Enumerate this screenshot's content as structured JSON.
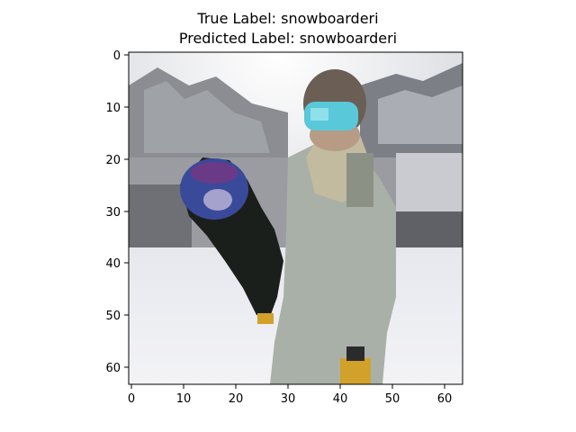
{
  "figure": {
    "title_line1": "True Label: snowboarderi",
    "title_line2": "Predicted Label: snowboarderi"
  },
  "axes": {
    "x_ticks": [
      "0",
      "10",
      "20",
      "30",
      "40",
      "50",
      "60"
    ],
    "y_ticks": [
      "0",
      "10",
      "20",
      "30",
      "40",
      "50",
      "60"
    ]
  },
  "image": {
    "description_icon": "snowboarder-photo",
    "colors": {
      "sky": "#e8e8ea",
      "snow": "#eef0f3",
      "mountain": "#8b8d92",
      "jacket": "#a9b0a8",
      "board_dark": "#1b1f1c",
      "board_top_purple": "#6b3a87",
      "board_blue": "#3a4a9a",
      "goggles": "#59c8d8",
      "hair": "#6b5e55",
      "glove": "#d2a12a"
    }
  }
}
